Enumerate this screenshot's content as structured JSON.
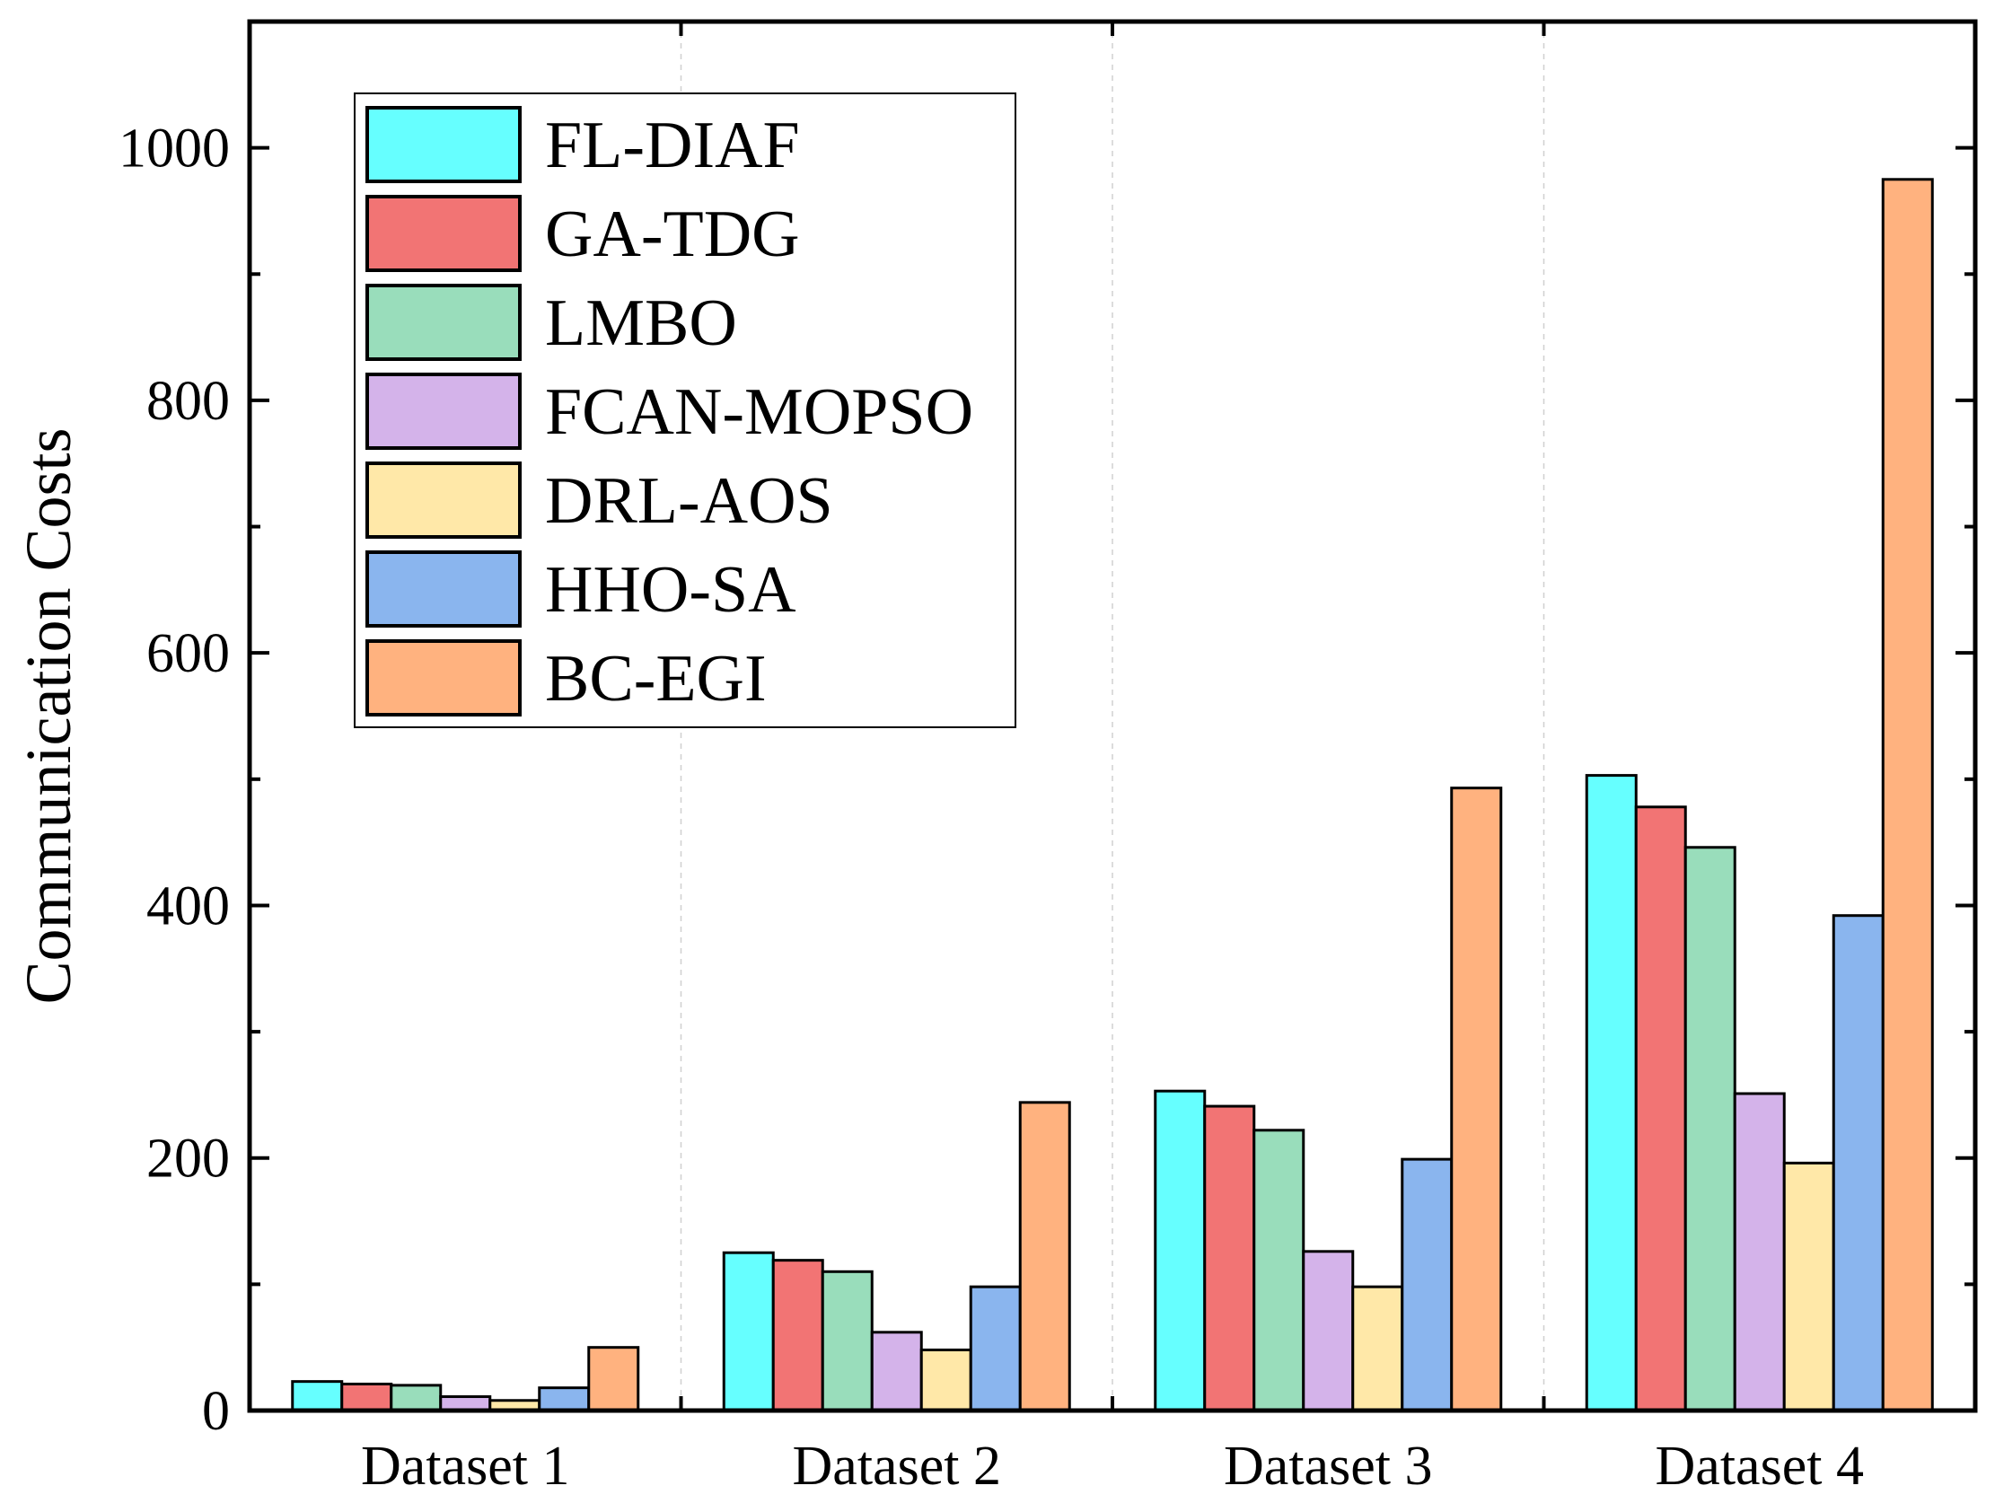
{
  "chart_data": {
    "type": "bar",
    "title": "",
    "xlabel": "",
    "ylabel": "Communication Costs",
    "ylim": [
      0,
      1100
    ],
    "yticks": [
      0,
      200,
      400,
      600,
      800,
      1000
    ],
    "grid": "vertical dashed separators between groups",
    "legend_position": "top-left",
    "categories": [
      "Dataset 1",
      "Dataset 2",
      "Dataset 3",
      "Dataset 4"
    ],
    "series": [
      {
        "name": "FL-DIAF",
        "color": "#66FFFF",
        "values": [
          23,
          125,
          253,
          503
        ]
      },
      {
        "name": "GA-TDG",
        "color": "#F27474",
        "values": [
          21,
          119,
          241,
          478
        ]
      },
      {
        "name": "LMBO",
        "color": "#99DDBB",
        "values": [
          20,
          110,
          222,
          446
        ]
      },
      {
        "name": "FCAN-MOPSO",
        "color": "#D4B3EA",
        "values": [
          11,
          62,
          126,
          251
        ]
      },
      {
        "name": "DRL-AOS",
        "color": "#FFE8A8",
        "values": [
          8,
          48,
          98,
          196
        ]
      },
      {
        "name": "HHO-SA",
        "color": "#8AB5EE",
        "values": [
          18,
          98,
          199,
          392
        ]
      },
      {
        "name": "BC-EGI",
        "color": "#FFB27F",
        "values": [
          50,
          244,
          493,
          975
        ]
      }
    ]
  }
}
